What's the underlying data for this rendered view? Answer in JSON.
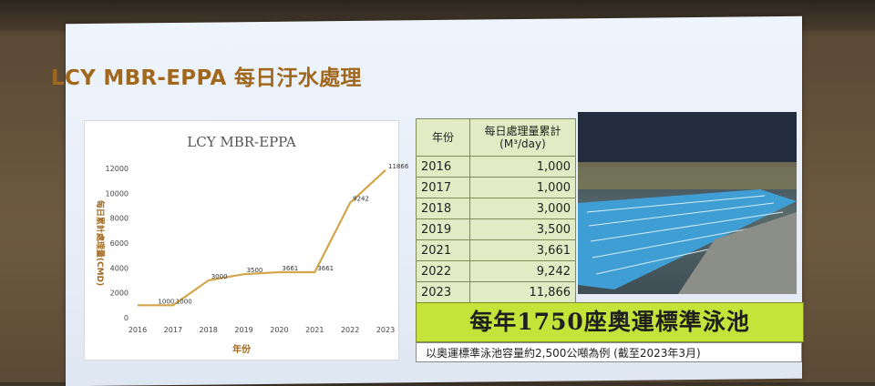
{
  "slide": {
    "title": "LCY MBR-EPPA 每日汙水處理",
    "banner": "每年1750座奧運標準泳池",
    "note": "以奧運標準泳池容量約2,500公噸為例 (截至2023年3月)"
  },
  "table": {
    "headers": [
      "年份",
      "每日處理量累計\n(M³/day)"
    ],
    "rows": [
      [
        "2016",
        "1,000"
      ],
      [
        "2017",
        "1,000"
      ],
      [
        "2018",
        "3,000"
      ],
      [
        "2019",
        "3,500"
      ],
      [
        "2021",
        "3,661"
      ],
      [
        "2022",
        "9,242"
      ],
      [
        "2023",
        "11,866"
      ]
    ]
  },
  "colors": {
    "title": "#a0671d",
    "line": "#d4a64a",
    "banner": "#c6e33a",
    "table": "#e2ecc4"
  },
  "chart_data": {
    "type": "line",
    "title": "LCY MBR-EPPA",
    "xlabel": "年份",
    "ylabel": "每日累計處理量(CMD)",
    "categories": [
      "2016",
      "2017",
      "2018",
      "2019",
      "2020",
      "2021",
      "2022",
      "2023"
    ],
    "x": [
      2016,
      2016.5,
      2017,
      2018,
      2019,
      2020,
      2021,
      2022,
      2023
    ],
    "values": [
      1000,
      1000,
      1000,
      3000,
      3500,
      3661,
      3661,
      9242,
      11866
    ],
    "data_labels": [
      "1000",
      "1000",
      "3000",
      "3500",
      "3661",
      "3661",
      "9242",
      "11866"
    ],
    "label_x": [
      2016.5,
      2017,
      2018,
      2019,
      2020,
      2021,
      2022,
      2023
    ],
    "label_values": [
      1000,
      1000,
      3000,
      3500,
      3661,
      3661,
      9242,
      11866
    ],
    "yticks": [
      "0",
      "2000",
      "4000",
      "6000",
      "8000",
      "10000",
      "12000"
    ],
    "ylim": [
      0,
      12000
    ],
    "grid": false
  }
}
